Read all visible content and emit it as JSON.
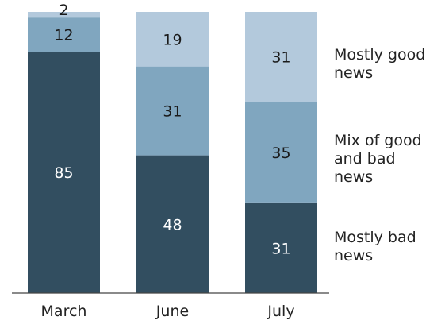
{
  "chart_data": {
    "type": "bar",
    "stacked": true,
    "categories": [
      "March",
      "June",
      "July"
    ],
    "series": [
      {
        "name": "Mostly bad news",
        "values": [
          85,
          48,
          31
        ],
        "color": "#324e60",
        "label_color": "#ffffff"
      },
      {
        "name": "Mix of good and bad news",
        "values": [
          12,
          31,
          35
        ],
        "color": "#80a6bf",
        "label_color": "#1a1a1a"
      },
      {
        "name": "Mostly good news",
        "values": [
          2,
          19,
          31
        ],
        "color": "#b3c9dc",
        "label_color": "#1a1a1a"
      }
    ],
    "legend_placement": "right",
    "grid": false,
    "title": "",
    "xlabel": "",
    "ylabel": ""
  }
}
